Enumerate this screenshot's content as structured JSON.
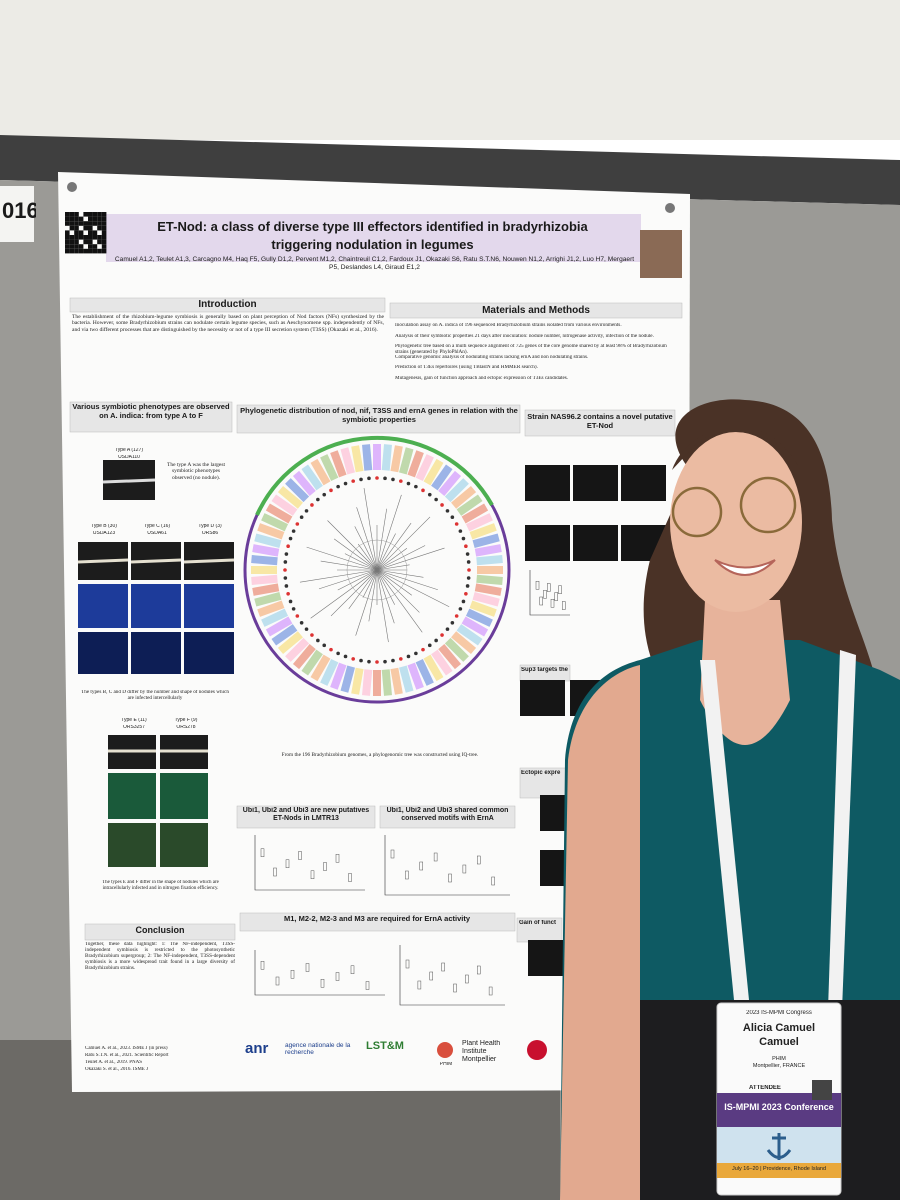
{
  "board_number": "016",
  "poster": {
    "title_lines": [
      "ET-Nod: a class of diverse type III effectors identified in bradyrhizobia",
      "triggering nodulation in legumes"
    ],
    "authors": "Camuel A1,2, Teulet A1,3, Carcagno M4, Haq F5, Gully D1,2, Pervent M1,2, Chaintreuil C1,2, Fardoux J1, Okazaki S6, Ratu S.T.N6, Nouwen N1,2, Arrighi J1,2, Luo H7, Mergaert P5, Deslandes L4, Giraud E1,2",
    "introduction": {
      "heading": "Introduction",
      "text": "The establishment of the rhizobium-legume symbiosis is generally based on plant perception of Nod factors (NFs) synthesized by the bacteria. However, some Bradyrhizobium strains can nodulate certain legume species, such as Aeschynomene spp. independently of NFs, and via two different processes that are distinguished by the necessity or not of a type III secretion system (T3SS) (Okazaki et al., 2016)."
    },
    "methods": {
      "heading": "Materials and Methods",
      "bullets": [
        "Inoculation assay on A. indica of 196 sequenced Bradyrhizobium strains isolated from various environments.",
        "Analysis of their symbiotic properties 21 days after inoculation: nodule number, nitrogenase activity, infection of the nodule.",
        "Phylogenetic tree based on a multi sequence alignment of 725 genes of the core genome shared by at least 98% of Bradyrhizobium strains (generated by PhyloPhlAn).",
        "Comparative genomic analysis of nodulating strains lacking ernA and non nodulating strains.",
        "Prediction of T3Es repertoires (using TBlastN and HMMER search).",
        "Mutagenesis, gain of function approach and ectopic expression of T3Es candidates."
      ]
    },
    "headings": {
      "phenotypes": "Various symbiotic phenotypes are observed on A. indica: from type A to F",
      "phylogeny": "Phylogenetic distribution of nod, nif, T3SS and ernA genes in relation with the symbiotic properties",
      "strain": "Strain NAS96.2 contains a novel putative ET-Nod",
      "ubi_new": "Ubi1, Ubi2 and Ubi3 are new putatives ET-Nods in LMTR13",
      "ubi_motifs": "Ubi1, Ubi2 and Ubi3 shared common conserved motifs with ErnA",
      "motifs_required": "M1, M2-2, M2-3 and M3 are required for ErnA activity",
      "conclusion": "Conclusion",
      "sup3": "Sup3 targets the ho",
      "ectopic": "Ectopic expre",
      "gain": "Gain of funct"
    },
    "types": [
      {
        "label": "Type A (127)",
        "strain": "USDA110"
      },
      {
        "label": "Type B (30)",
        "strain": "USDA123"
      },
      {
        "label": "Type C (16)",
        "strain": "USDA61"
      },
      {
        "label": "Type D (3)",
        "strain": "ORS86"
      },
      {
        "label": "Type E (11)",
        "strain": "ORS3257"
      },
      {
        "label": "Type F (9)",
        "strain": "ORS278"
      }
    ],
    "type_a_note": "The type A was the largest symbiotic phenotypes observed (no nodule).",
    "type_bcd_note": "The types B, C and D differ by the number and shape of nodules which are infected intercellularly",
    "type_ef_note": "The types E and F differ in the shape of nodules which are intracellularly infected and in nitrogen fixation efficiency.",
    "phylogeny_note": "From the 196 Bradyrhizobium genomes, a phylogenomic tree was constructed using IQ-tree.",
    "conclusion_text": "Together, these data highlight: 1: The NF-independent, T3SS-independent symbiosis is restricted to the photosynthetic Bradyrhizobium supergroup; 2: The NF-independent, T3SS-dependent symbiosis is a more widespread trait found in a large diversity of Bradyrhizobium strains.",
    "references": [
      "Camuel A. et al., 2023. ISME J (in press)",
      "Ratu S.T.N. et al., 2021. Scientific Report",
      "Teulet A. et al., 2019. PNAS",
      "Okazaki S. et al., 2016. ISME J"
    ],
    "logos": [
      "anr",
      "agence nationale de la recherche",
      "LST&M",
      "PHIM",
      "Plant Health Institute Montpellier"
    ]
  },
  "badge": {
    "event": "2023 IS-MPMI Congress",
    "name_lines": [
      "Alicia Camuel",
      "Camuel"
    ],
    "org": "PHIM",
    "location": "Montpellier, FRANCE",
    "role": "ATTENDEE",
    "banner": "IS-MPMI 2023 Conference",
    "dates": "July 16–20 | Providence, Rhode Island"
  }
}
